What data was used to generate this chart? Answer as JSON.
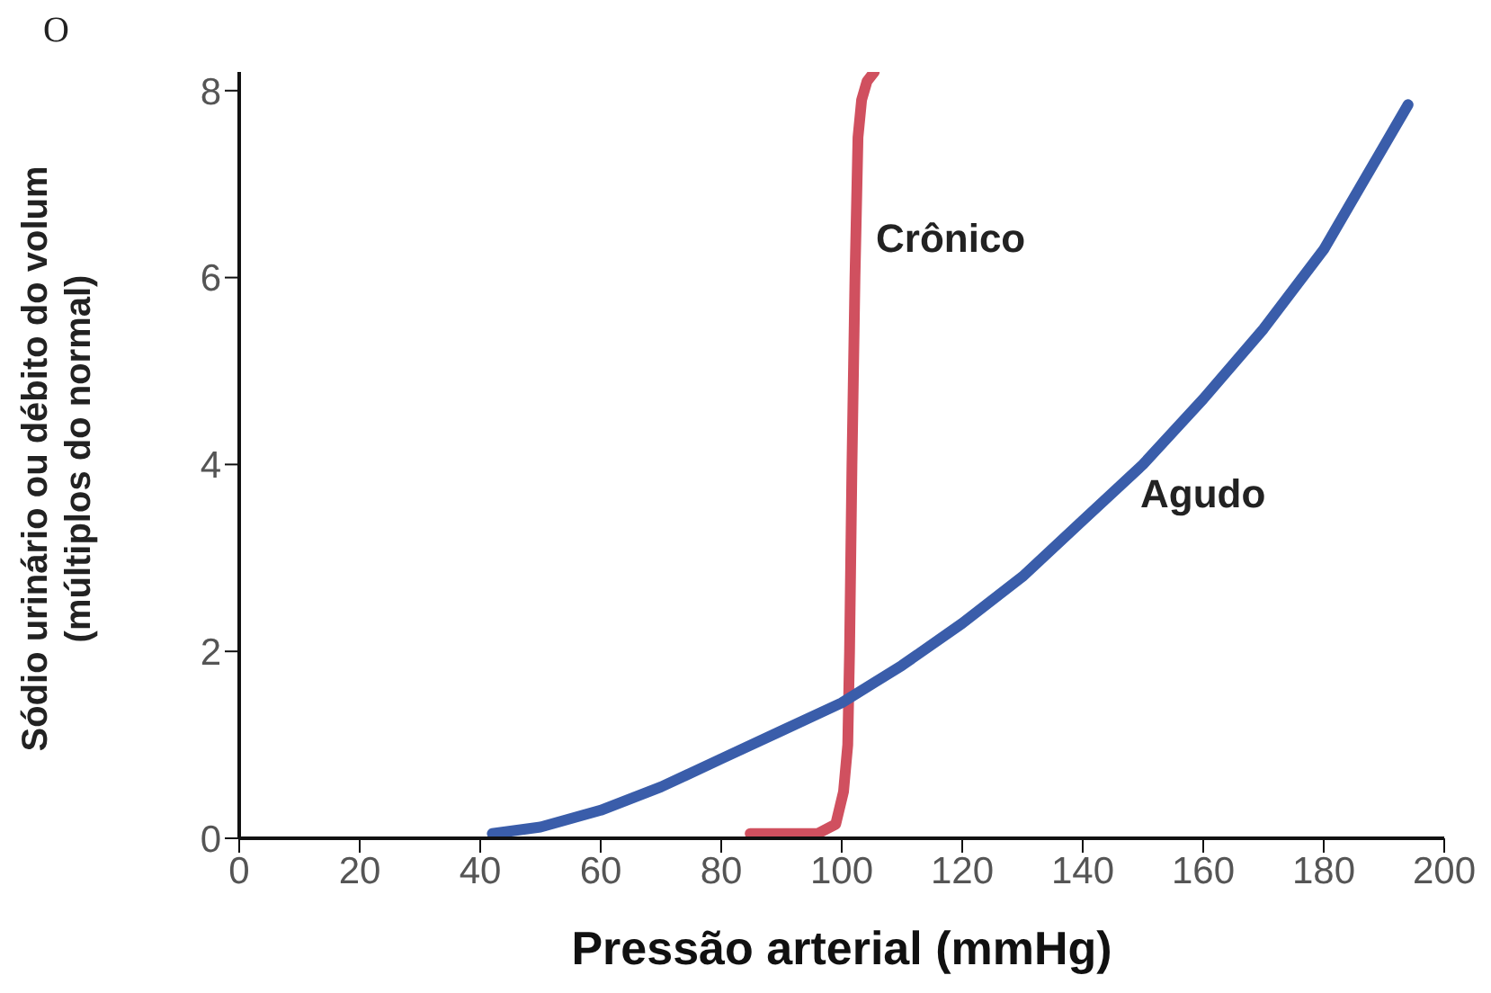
{
  "chart_data": {
    "type": "line",
    "xlabel": "Pressão arterial (mmHg)",
    "ylabel": "Sódio urinário ou débito do volum\n(múltiplos do normal)",
    "xlim": [
      0,
      200
    ],
    "xticks": [
      0,
      20,
      40,
      60,
      80,
      100,
      120,
      140,
      160,
      180,
      200
    ],
    "ylim": [
      0,
      8.2
    ],
    "yticks": [
      0,
      2,
      4,
      6,
      8
    ],
    "grid": false,
    "legend": false,
    "marker": "none",
    "line_style": "solid",
    "series": [
      {
        "color": "#d0505f",
        "x": [
          84.8,
          96,
          99,
          100.3,
          101,
          101.3,
          101.7,
          102.2,
          102.7,
          103.3,
          104.2,
          105.4
        ],
        "values": [
          0.05,
          0.05,
          0.15,
          0.5,
          1,
          2,
          4,
          6,
          7.5,
          7.9,
          8.1,
          8.2
        ]
      },
      {
        "color": "#3a5daa",
        "x": [
          42,
          50,
          60,
          70,
          80,
          90,
          100,
          110,
          120,
          130,
          140,
          150,
          160,
          170,
          180,
          194
        ],
        "values": [
          0.05,
          0.12,
          0.3,
          0.55,
          0.85,
          1.15,
          1.45,
          1.85,
          2.3,
          2.8,
          3.4,
          4.0,
          4.7,
          5.45,
          6.3,
          7.85
        ]
      }
    ],
    "annotations": [
      "O",
      "Crônico",
      "Agudo"
    ]
  }
}
